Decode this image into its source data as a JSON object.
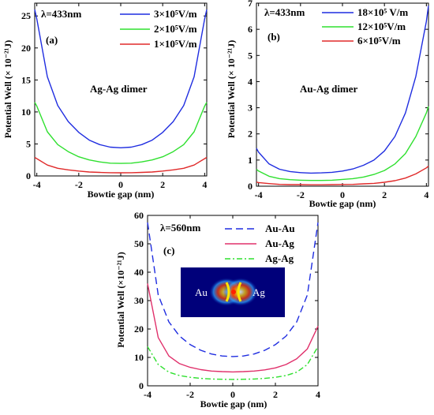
{
  "chart_data": [
    {
      "type": "line",
      "panel_label": "(a)",
      "annotation": "λ=433nm",
      "inner_label": "Ag-Ag dimer",
      "xlabel": "Bowtie gap (nm)",
      "ylabel": "Potential Well (× 10⁻²¹J)",
      "xlim": [
        -4.1,
        4.1
      ],
      "ylim": [
        0,
        27
      ],
      "xticks": [
        -4,
        -2,
        0,
        2,
        4
      ],
      "yticks": [
        0,
        5,
        10,
        15,
        20,
        25
      ],
      "legend_position": "top-right",
      "series": [
        {
          "name": "3×10⁵V/m",
          "color": "#1f2de0",
          "dash": "solid",
          "x": [
            -4.1,
            -4,
            -3.5,
            -3,
            -2.5,
            -2,
            -1.5,
            -1,
            -0.5,
            0,
            0.5,
            1,
            1.5,
            2,
            2.5,
            3,
            3.5,
            4,
            4.1
          ],
          "y": [
            26.0,
            24.5,
            15.5,
            11.0,
            8.5,
            6.8,
            5.6,
            4.9,
            4.5,
            4.4,
            4.5,
            4.9,
            5.6,
            6.8,
            8.5,
            11.0,
            15.5,
            24.5,
            26.0
          ]
        },
        {
          "name": "2×10⁵V/m",
          "color": "#2fe02f",
          "dash": "solid",
          "x": [
            -4.1,
            -4,
            -3.5,
            -3,
            -2.5,
            -2,
            -1.5,
            -1,
            -0.5,
            0,
            0.5,
            1,
            1.5,
            2,
            2.5,
            3,
            3.5,
            4,
            4.1
          ],
          "y": [
            11.5,
            10.9,
            6.9,
            4.9,
            3.8,
            3.0,
            2.5,
            2.2,
            2.0,
            1.96,
            2.0,
            2.2,
            2.5,
            3.0,
            3.8,
            4.9,
            6.9,
            10.9,
            11.5
          ]
        },
        {
          "name": "1×10⁵V/m",
          "color": "#e02a2a",
          "dash": "solid",
          "x": [
            -4.1,
            -4,
            -3.5,
            -3,
            -2.5,
            -2,
            -1.5,
            -1,
            -0.5,
            0,
            0.5,
            1,
            1.5,
            2,
            2.5,
            3,
            3.5,
            4,
            4.1
          ],
          "y": [
            2.9,
            2.7,
            1.7,
            1.2,
            0.95,
            0.76,
            0.62,
            0.55,
            0.5,
            0.49,
            0.5,
            0.55,
            0.62,
            0.76,
            0.95,
            1.2,
            1.7,
            2.7,
            2.9
          ]
        }
      ]
    },
    {
      "type": "line",
      "panel_label": "(b)",
      "annotation": "λ=433nm",
      "inner_label": "Au-Ag dimer",
      "xlabel": "Bowtie gap (nm)",
      "ylabel": "Potential Well (× 10⁻²¹J)",
      "xlim": [
        -4.1,
        4.1
      ],
      "ylim": [
        0,
        7
      ],
      "xticks": [
        -4,
        -2,
        0,
        2,
        4
      ],
      "yticks": [
        0,
        1,
        2,
        3,
        4,
        5,
        6,
        7
      ],
      "legend_position": "top-right",
      "series": [
        {
          "name": "18×10⁵ V/m",
          "color": "#1f2de0",
          "dash": "solid",
          "x": [
            -4.1,
            -4,
            -3.5,
            -3,
            -2.5,
            -2,
            -1.5,
            -1,
            -0.5,
            0,
            0.5,
            1,
            1.5,
            2,
            2.5,
            3,
            3.5,
            4,
            4.1
          ],
          "y": [
            1.45,
            1.3,
            0.85,
            0.65,
            0.56,
            0.52,
            0.5,
            0.51,
            0.53,
            0.58,
            0.66,
            0.8,
            1.0,
            1.35,
            1.9,
            2.8,
            4.2,
            6.3,
            6.9
          ]
        },
        {
          "name": "12×10⁵V/m",
          "color": "#2fe02f",
          "dash": "solid",
          "x": [
            -4.1,
            -4,
            -3.5,
            -3,
            -2.5,
            -2,
            -1.5,
            -1,
            -0.5,
            0,
            0.5,
            1,
            1.5,
            2,
            2.5,
            3,
            3.5,
            4,
            4.1
          ],
          "y": [
            0.65,
            0.58,
            0.38,
            0.29,
            0.25,
            0.23,
            0.22,
            0.22,
            0.23,
            0.26,
            0.29,
            0.35,
            0.45,
            0.6,
            0.85,
            1.25,
            1.9,
            2.8,
            3.05
          ]
        },
        {
          "name": "6×10⁵V/m",
          "color": "#e02a2a",
          "dash": "solid",
          "x": [
            -4.1,
            -4,
            -3.5,
            -3,
            -2.5,
            -2,
            -1.5,
            -1,
            -0.5,
            0,
            0.5,
            1,
            1.5,
            2,
            2.5,
            3,
            3.5,
            4,
            4.1
          ],
          "y": [
            0.16,
            0.14,
            0.1,
            0.07,
            0.06,
            0.06,
            0.055,
            0.055,
            0.06,
            0.065,
            0.07,
            0.09,
            0.11,
            0.15,
            0.21,
            0.31,
            0.47,
            0.7,
            0.77
          ]
        }
      ]
    },
    {
      "type": "line",
      "panel_label": "(c)",
      "annotation": "λ=560nm",
      "xlabel": "Bowtie gap (nm)",
      "ylabel": "Potential Well (×10⁻²¹J)",
      "xlim": [
        -4,
        4
      ],
      "ylim": [
        0,
        60
      ],
      "xticks": [
        -4,
        -2,
        0,
        2,
        4
      ],
      "yticks": [
        0,
        10,
        20,
        30,
        40,
        50,
        60
      ],
      "legend_position": "top-right",
      "inset_labels": [
        "Au",
        "Ag"
      ],
      "series": [
        {
          "name": "Au-Au",
          "color": "#1f2de0",
          "dash": "dashed",
          "x": [
            -4,
            -3.5,
            -3,
            -2.5,
            -2,
            -1.5,
            -1,
            -0.5,
            0,
            0.5,
            1,
            1.5,
            2,
            2.5,
            3,
            3.5,
            4
          ],
          "y": [
            57.5,
            32.0,
            22.5,
            17.5,
            14.5,
            12.5,
            11.2,
            10.5,
            10.3,
            10.5,
            11.2,
            12.5,
            14.5,
            17.5,
            22.5,
            32.0,
            57.5
          ]
        },
        {
          "name": "Au-Ag",
          "color": "#e0306b",
          "dash": "solid",
          "x": [
            -4,
            -3.5,
            -3,
            -2.5,
            -2,
            -1.5,
            -1,
            -0.5,
            0,
            0.5,
            1,
            1.5,
            2,
            2.5,
            3,
            3.5,
            4
          ],
          "y": [
            36.0,
            17.0,
            10.5,
            7.8,
            6.5,
            5.7,
            5.2,
            5.0,
            4.9,
            5.0,
            5.2,
            5.6,
            6.3,
            7.5,
            9.5,
            13.0,
            21.0
          ]
        },
        {
          "name": "Ag-Ag",
          "color": "#2fe02f",
          "dash": "dashdot",
          "x": [
            -4,
            -3.5,
            -3,
            -2.5,
            -2,
            -1.5,
            -1,
            -0.5,
            0,
            0.5,
            1,
            1.5,
            2,
            2.5,
            3,
            3.5,
            4
          ],
          "y": [
            13.8,
            7.5,
            4.8,
            3.6,
            3.0,
            2.6,
            2.4,
            2.3,
            2.25,
            2.3,
            2.4,
            2.6,
            3.0,
            3.6,
            4.8,
            7.5,
            13.8
          ]
        }
      ]
    }
  ]
}
